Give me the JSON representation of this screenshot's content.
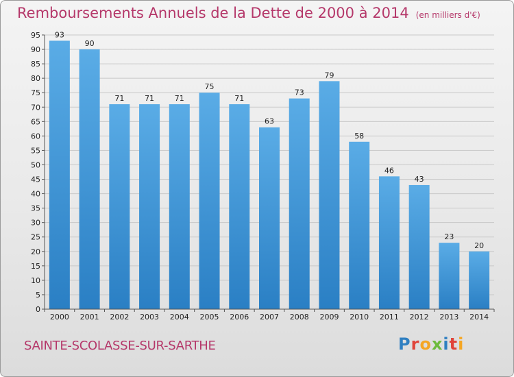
{
  "header": {
    "title": "Remboursements Annuels de la Dette de 2000 à 2014",
    "unit": "(en milliers d'€)"
  },
  "footer": {
    "place": "SAINTE-SCOLASSE-SUR-SARTHE",
    "logo": "Proxiti"
  },
  "colors": {
    "title": "#b5386a",
    "bar_top": "#5aace6",
    "bar_bottom": "#2a7fc4"
  },
  "chart_data": {
    "type": "bar",
    "title": "Remboursements Annuels de la Dette de 2000 à 2014",
    "ylabel": "en milliers d'€",
    "xlabel": "",
    "categories": [
      "2000",
      "2001",
      "2002",
      "2003",
      "2004",
      "2005",
      "2006",
      "2007",
      "2008",
      "2009",
      "2010",
      "2011",
      "2012",
      "2013",
      "2014"
    ],
    "values": [
      93,
      90,
      71,
      71,
      71,
      75,
      71,
      63,
      73,
      79,
      58,
      46,
      43,
      23,
      20
    ],
    "ylim": [
      0,
      95
    ],
    "ytick_step": 5,
    "grid": true
  }
}
